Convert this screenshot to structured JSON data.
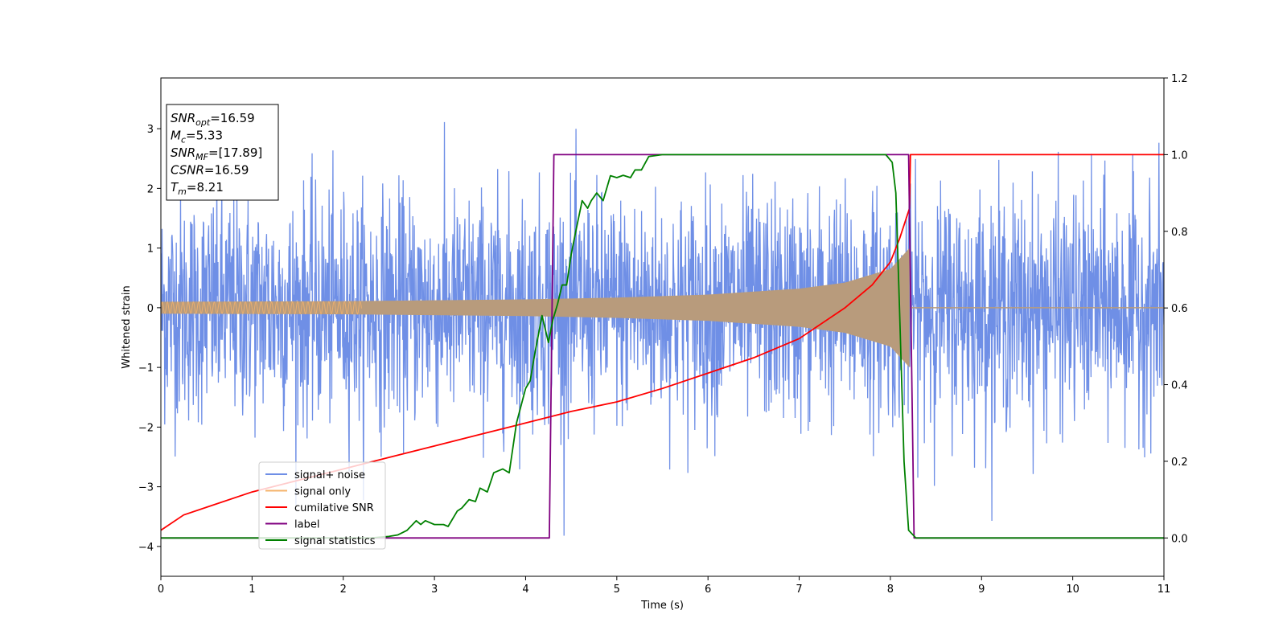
{
  "chart_data": {
    "type": "line",
    "xlabel": "Time (s)",
    "ylabel": "Whitened strain",
    "xlim": [
      0,
      11
    ],
    "ylim_left": [
      -4.5,
      3.85
    ],
    "ylim_right": [
      -0.1,
      1.2
    ],
    "x_ticks": [
      0,
      1,
      2,
      3,
      4,
      5,
      6,
      7,
      8,
      9,
      10,
      11
    ],
    "y_ticks_left": [
      -4,
      -3,
      -2,
      -1,
      0,
      1,
      2,
      3
    ],
    "y_ticks_right": [
      0.0,
      0.2,
      0.4,
      0.6,
      0.8,
      1.0,
      1.2
    ],
    "legend_position": "lower-left",
    "grid": false,
    "colors": {
      "signal_noise": "#6f8fe6",
      "signal_only": "#f5b36b",
      "overlap": "#b89b7c",
      "cumulative_snr": "#ff0000",
      "label": "#800080",
      "signal_statistics": "#008000"
    },
    "info_box": [
      {
        "base": "SNR",
        "sub": "opt",
        "rest": "=16.59"
      },
      {
        "base": "M",
        "sub": "c",
        "rest": "=5.33"
      },
      {
        "base": "SNR",
        "sub": "MF",
        "rest": "=[17.89]"
      },
      {
        "base": "CSNR",
        "sub": "",
        "rest": "=16.59"
      },
      {
        "base": "T",
        "sub": "m",
        "rest": "=8.21"
      }
    ],
    "series": [
      {
        "name": "signal+ noise",
        "axis": "left",
        "note": "Gaussian-like whitened noise with typical range [-2.6, 3.4], min ~ -4.15 near t=3.7",
        "approx_range": [
          -4.15,
          3.45
        ]
      },
      {
        "name": "signal only",
        "axis": "left",
        "note": "chirp whose envelope grows from ~0.1 to ~1.0, ending at t=8.21",
        "envelope": {
          "x": [
            0,
            2,
            4,
            5,
            6,
            7,
            7.5,
            8,
            8.21
          ],
          "y": [
            0.1,
            0.11,
            0.14,
            0.17,
            0.22,
            0.32,
            0.42,
            0.65,
            1.0
          ]
        }
      },
      {
        "name": "cumilative SNR",
        "axis": "right",
        "x": [
          0,
          0.25,
          0.5,
          1,
          1.5,
          2,
          2.5,
          3,
          3.5,
          4,
          4.5,
          5,
          5.5,
          6,
          6.5,
          7,
          7.5,
          7.8,
          8.0,
          8.1,
          8.21,
          8.22,
          11
        ],
        "y": [
          0.02,
          0.06,
          0.08,
          0.12,
          0.15,
          0.18,
          0.21,
          0.24,
          0.27,
          0.3,
          0.33,
          0.355,
          0.39,
          0.43,
          0.47,
          0.52,
          0.6,
          0.66,
          0.72,
          0.78,
          0.86,
          1.0,
          1.0
        ]
      },
      {
        "name": "label",
        "axis": "right",
        "x": [
          0,
          4.26,
          4.31,
          8.2,
          8.26,
          11
        ],
        "y": [
          0,
          0,
          1,
          1,
          0,
          0
        ]
      },
      {
        "name": "signal statistics",
        "axis": "right",
        "x": [
          0,
          2.3,
          2.5,
          2.6,
          2.7,
          2.8,
          2.85,
          2.9,
          3.0,
          3.1,
          3.15,
          3.25,
          3.3,
          3.38,
          3.45,
          3.5,
          3.58,
          3.65,
          3.75,
          3.82,
          3.9,
          4.0,
          4.05,
          4.1,
          4.18,
          4.25,
          4.3,
          4.35,
          4.4,
          4.45,
          4.5,
          4.55,
          4.62,
          4.68,
          4.72,
          4.78,
          4.85,
          4.93,
          5.0,
          5.07,
          5.15,
          5.2,
          5.27,
          5.35,
          5.5,
          6.0,
          7.0,
          7.95,
          8.02,
          8.06,
          8.1,
          8.15,
          8.2,
          8.28,
          11
        ],
        "y": [
          0,
          0,
          0.004,
          0.008,
          0.02,
          0.045,
          0.035,
          0.045,
          0.035,
          0.035,
          0.03,
          0.07,
          0.078,
          0.1,
          0.095,
          0.13,
          0.12,
          0.17,
          0.18,
          0.17,
          0.3,
          0.39,
          0.41,
          0.48,
          0.58,
          0.51,
          0.57,
          0.61,
          0.66,
          0.66,
          0.74,
          0.8,
          0.88,
          0.86,
          0.88,
          0.9,
          0.88,
          0.945,
          0.94,
          0.946,
          0.94,
          0.96,
          0.96,
          0.995,
          1.0,
          1.0,
          1.0,
          1.0,
          0.98,
          0.9,
          0.6,
          0.2,
          0.02,
          0.0,
          0.0
        ]
      }
    ]
  }
}
